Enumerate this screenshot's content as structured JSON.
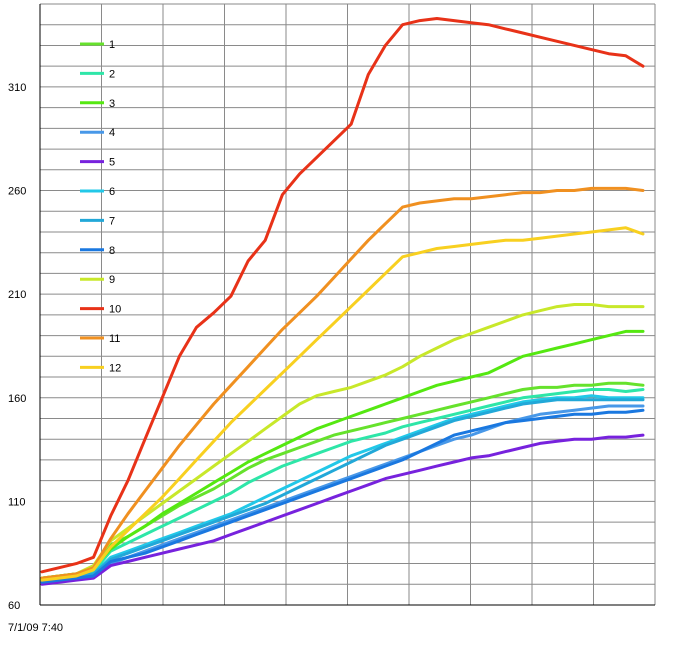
{
  "chart_data": {
    "type": "line",
    "ylim": [
      60,
      350
    ],
    "yticks": [
      60,
      110,
      160,
      210,
      260,
      310
    ],
    "x_first_label": "7/1/09 7:40",
    "grid": "horizontal and vertical",
    "legend_position": "upper-left inside plot",
    "x": [
      0,
      1,
      2,
      3,
      4,
      5,
      6,
      7,
      8,
      9,
      10,
      11,
      12,
      13,
      14,
      15,
      16,
      17,
      18,
      19,
      20,
      21,
      22,
      23,
      24,
      25,
      26,
      27,
      28,
      29,
      30,
      31,
      32,
      33,
      34,
      35
    ],
    "series": [
      {
        "name": "1",
        "color": "#66e22c",
        "values": [
          73,
          74,
          75,
          77,
          89,
          93,
          98,
          103,
          108,
          112,
          116,
          121,
          126,
          130,
          133,
          136,
          139,
          142,
          144,
          146,
          148,
          150,
          152,
          154,
          156,
          158,
          160,
          162,
          164,
          165,
          165,
          166,
          166,
          167,
          167,
          166
        ]
      },
      {
        "name": "2",
        "color": "#2ee6a8",
        "values": [
          73,
          74,
          75,
          76,
          86,
          90,
          94,
          98,
          102,
          106,
          110,
          114,
          119,
          123,
          127,
          130,
          133,
          136,
          139,
          141,
          143,
          146,
          148,
          150,
          152,
          154,
          156,
          158,
          160,
          161,
          162,
          163,
          164,
          164,
          163,
          164
        ]
      },
      {
        "name": "3",
        "color": "#55e811",
        "values": [
          73,
          74,
          75,
          78,
          87,
          93,
          98,
          104,
          109,
          114,
          119,
          124,
          129,
          133,
          137,
          141,
          145,
          148,
          151,
          154,
          157,
          160,
          163,
          166,
          168,
          170,
          172,
          176,
          180,
          182,
          184,
          186,
          188,
          190,
          192,
          192
        ]
      },
      {
        "name": "4",
        "color": "#4898e8",
        "values": [
          72,
          73,
          74,
          75,
          80,
          83,
          86,
          89,
          92,
          95,
          98,
          101,
          104,
          107,
          110,
          113,
          116,
          119,
          122,
          125,
          128,
          131,
          134,
          137,
          140,
          142,
          145,
          148,
          150,
          152,
          153,
          154,
          155,
          156,
          156,
          156
        ]
      },
      {
        "name": "5",
        "color": "#7722dd",
        "values": [
          70,
          71,
          72,
          73,
          79,
          81,
          83,
          85,
          87,
          89,
          91,
          94,
          97,
          100,
          103,
          106,
          109,
          112,
          115,
          118,
          121,
          123,
          125,
          127,
          129,
          131,
          132,
          134,
          136,
          138,
          139,
          140,
          140,
          141,
          141,
          142
        ]
      },
      {
        "name": "6",
        "color": "#22c8e8",
        "values": [
          72,
          73,
          74,
          75,
          83,
          86,
          89,
          92,
          95,
          98,
          101,
          104,
          108,
          112,
          116,
          120,
          124,
          128,
          132,
          135,
          138,
          141,
          144,
          147,
          150,
          152,
          154,
          156,
          158,
          159,
          160,
          160,
          161,
          160,
          160,
          160
        ]
      },
      {
        "name": "7",
        "color": "#22a8d8",
        "values": [
          72,
          73,
          74,
          75,
          82,
          85,
          88,
          91,
          94,
          97,
          100,
          103,
          106,
          109,
          113,
          117,
          121,
          125,
          129,
          133,
          137,
          140,
          143,
          146,
          149,
          151,
          153,
          155,
          157,
          158,
          159,
          159,
          159,
          159,
          159,
          159
        ]
      },
      {
        "name": "8",
        "color": "#1a78e0",
        "values": [
          71,
          72,
          73,
          74,
          81,
          83,
          85,
          88,
          91,
          94,
          97,
          100,
          103,
          106,
          109,
          112,
          115,
          118,
          121,
          124,
          127,
          130,
          134,
          138,
          142,
          144,
          146,
          148,
          149,
          150,
          151,
          152,
          152,
          153,
          153,
          154
        ]
      },
      {
        "name": "9",
        "color": "#c8e82a",
        "values": [
          73,
          74,
          75,
          79,
          91,
          97,
          103,
          109,
          115,
          121,
          127,
          133,
          139,
          145,
          151,
          157,
          161,
          163,
          165,
          168,
          171,
          175,
          180,
          184,
          188,
          191,
          194,
          197,
          200,
          202,
          204,
          205,
          205,
          204,
          204,
          204
        ]
      },
      {
        "name": "10",
        "color": "#e83218",
        "values": [
          76,
          78,
          80,
          83,
          103,
          120,
          140,
          160,
          180,
          194,
          201,
          209,
          226,
          236,
          258,
          268,
          276,
          284,
          292,
          316,
          330,
          340,
          342,
          343,
          342,
          341,
          340,
          338,
          336,
          334,
          332,
          330,
          328,
          326,
          325,
          320
        ]
      },
      {
        "name": "11",
        "color": "#f09020",
        "values": [
          73,
          74,
          75,
          78,
          92,
          104,
          115,
          126,
          137,
          147,
          157,
          166,
          175,
          184,
          193,
          201,
          209,
          218,
          227,
          236,
          244,
          252,
          254,
          255,
          256,
          256,
          257,
          258,
          259,
          259,
          260,
          260,
          261,
          261,
          261,
          260
        ]
      },
      {
        "name": "12",
        "color": "#f8d020",
        "values": [
          72,
          73,
          74,
          77,
          88,
          96,
          104,
          112,
          121,
          130,
          139,
          148,
          156,
          164,
          172,
          180,
          188,
          196,
          204,
          212,
          220,
          228,
          230,
          232,
          233,
          234,
          235,
          236,
          236,
          237,
          238,
          239,
          240,
          241,
          242,
          239
        ]
      }
    ]
  }
}
